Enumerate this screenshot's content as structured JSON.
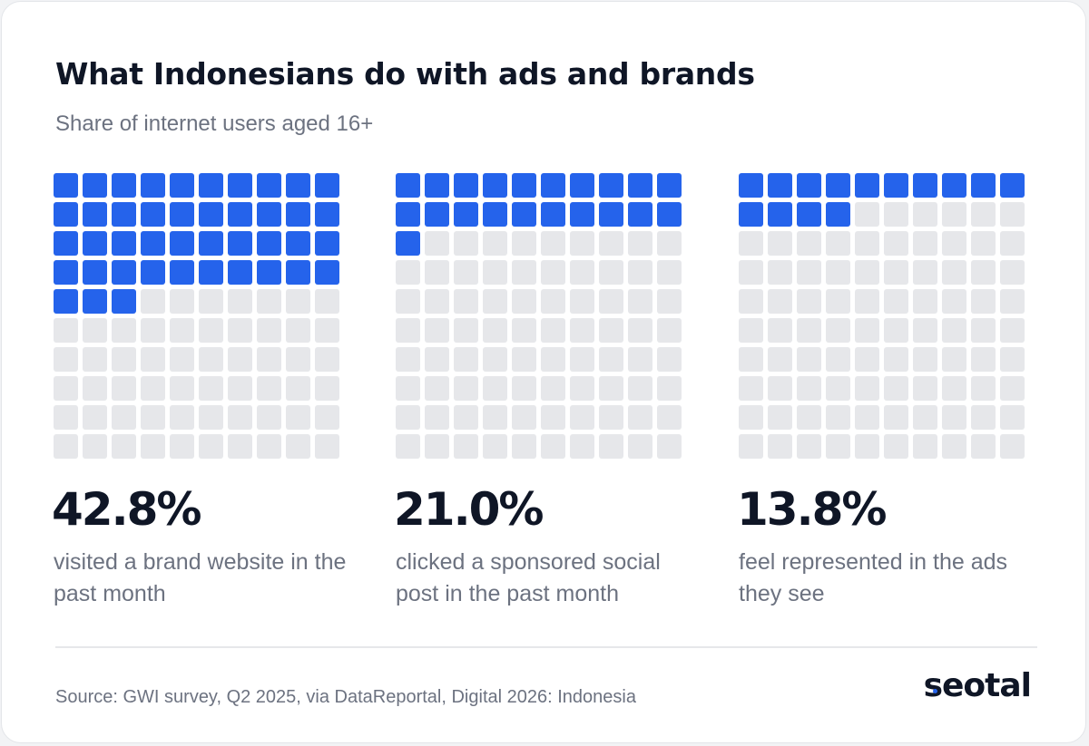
{
  "header": {
    "title": "What Indonesians do with ads and brands",
    "subtitle": "Share of internet users aged 16+"
  },
  "chart_data": {
    "type": "waffle",
    "title": "What Indonesians do with ads and brands",
    "subtitle": "Share of internet users aged 16+",
    "grid": {
      "rows": 10,
      "cols": 10
    },
    "series": [
      {
        "value": 42.8,
        "value_label": "42.8%",
        "label": "visited a brand website in the past month"
      },
      {
        "value": 21.0,
        "value_label": "21.0%",
        "label": "clicked a sponsored social post in the past month"
      },
      {
        "value": 13.8,
        "value_label": "13.8%",
        "label": "feel represented in the ads they see"
      }
    ],
    "colors": {
      "filled": "#2563eb",
      "empty": "#e6e7ea"
    }
  },
  "footer": {
    "source": "Source: GWI survey, Q2 2025, via DataReportal, Digital 2026: Indonesia",
    "brand": "seotal"
  }
}
